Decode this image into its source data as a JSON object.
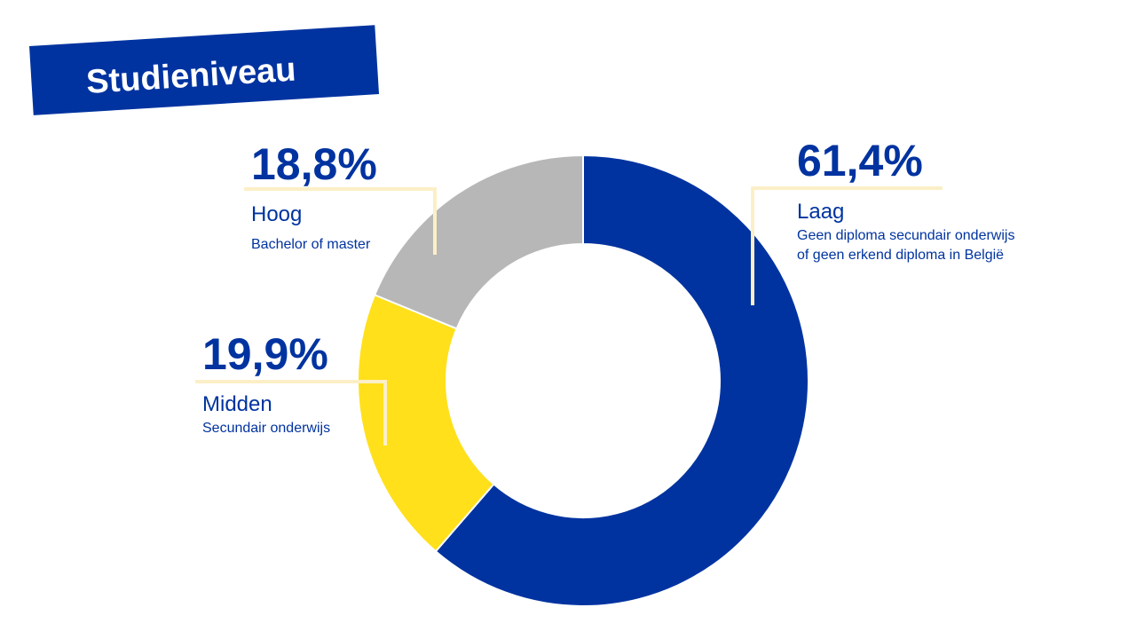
{
  "title": "Studieniveau",
  "chart_data": {
    "type": "pie",
    "style": "donut",
    "slices": [
      {
        "name": "Laag",
        "value": 61.4,
        "label": "61,4%",
        "description": [
          "Geen diploma secundair onderwijs",
          "of geen erkend diploma in België"
        ],
        "color": "#0033a0"
      },
      {
        "name": "Midden",
        "value": 19.9,
        "label": "19,9%",
        "description": [
          "Secundair onderwijs"
        ],
        "color": "#ffe01b"
      },
      {
        "name": "Hoog",
        "value": 18.8,
        "label": "18,8%",
        "description": [
          "Bachelor of master"
        ],
        "color": "#b7b7b7"
      }
    ]
  },
  "colors": {
    "accent": "#0033a0",
    "leader_line": "#fcefc7"
  }
}
